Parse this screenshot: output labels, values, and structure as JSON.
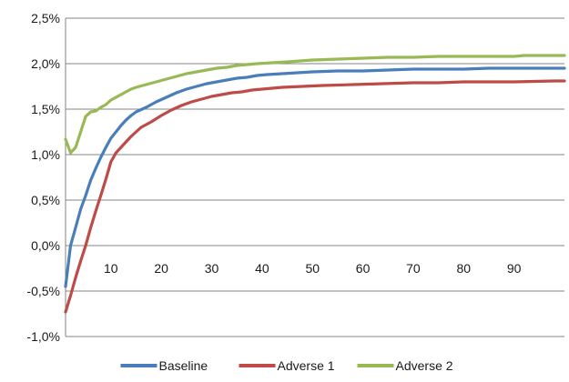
{
  "chart_data": {
    "type": "line",
    "ylim": [
      -1.0,
      2.5
    ],
    "y_ticks": [
      {
        "value": 2.5,
        "label": "2,5%"
      },
      {
        "value": 2.0,
        "label": "2,0%"
      },
      {
        "value": 1.5,
        "label": "1,5%"
      },
      {
        "value": 1.0,
        "label": "1,0%"
      },
      {
        "value": 0.5,
        "label": "0,5%"
      },
      {
        "value": 0.0,
        "label": "0,0%"
      },
      {
        "value": -0.5,
        "label": "-0,5%"
      },
      {
        "value": -1.0,
        "label": "-1,0%"
      }
    ],
    "xlim": [
      1,
      100
    ],
    "x_ticks": [
      10,
      20,
      30,
      40,
      50,
      60,
      70,
      80,
      90
    ],
    "grid": "horizontal",
    "legend_position": "bottom",
    "series": [
      {
        "name": "Baseline",
        "color": "#4a7ebb",
        "points": [
          [
            1,
            -0.45
          ],
          [
            2,
            0.0
          ],
          [
            3,
            0.2
          ],
          [
            4,
            0.4
          ],
          [
            5,
            0.55
          ],
          [
            6,
            0.72
          ],
          [
            7,
            0.85
          ],
          [
            8,
            0.97
          ],
          [
            9,
            1.08
          ],
          [
            10,
            1.18
          ],
          [
            11,
            1.25
          ],
          [
            12,
            1.32
          ],
          [
            13,
            1.38
          ],
          [
            14,
            1.43
          ],
          [
            15,
            1.47
          ],
          [
            17,
            1.52
          ],
          [
            19,
            1.58
          ],
          [
            21,
            1.63
          ],
          [
            23,
            1.68
          ],
          [
            25,
            1.72
          ],
          [
            27,
            1.75
          ],
          [
            29,
            1.78
          ],
          [
            31,
            1.8
          ],
          [
            33,
            1.82
          ],
          [
            35,
            1.84
          ],
          [
            37,
            1.85
          ],
          [
            39,
            1.87
          ],
          [
            41,
            1.88
          ],
          [
            44,
            1.89
          ],
          [
            47,
            1.9
          ],
          [
            50,
            1.91
          ],
          [
            55,
            1.92
          ],
          [
            60,
            1.92
          ],
          [
            65,
            1.93
          ],
          [
            70,
            1.94
          ],
          [
            80,
            1.94
          ],
          [
            85,
            1.95
          ],
          [
            90,
            1.95
          ],
          [
            100,
            1.95
          ]
        ]
      },
      {
        "name": "Adverse 1",
        "color": "#be4b48",
        "points": [
          [
            1,
            -0.73
          ],
          [
            2,
            -0.55
          ],
          [
            3,
            -0.35
          ],
          [
            4,
            -0.17
          ],
          [
            5,
            0.0
          ],
          [
            6,
            0.2
          ],
          [
            7,
            0.38
          ],
          [
            8,
            0.55
          ],
          [
            9,
            0.73
          ],
          [
            10,
            0.92
          ],
          [
            11,
            1.02
          ],
          [
            12,
            1.08
          ],
          [
            13,
            1.14
          ],
          [
            14,
            1.2
          ],
          [
            15,
            1.25
          ],
          [
            16,
            1.3
          ],
          [
            18,
            1.36
          ],
          [
            20,
            1.43
          ],
          [
            22,
            1.49
          ],
          [
            24,
            1.54
          ],
          [
            26,
            1.58
          ],
          [
            28,
            1.61
          ],
          [
            30,
            1.64
          ],
          [
            32,
            1.66
          ],
          [
            34,
            1.68
          ],
          [
            36,
            1.69
          ],
          [
            38,
            1.71
          ],
          [
            40,
            1.72
          ],
          [
            44,
            1.74
          ],
          [
            48,
            1.75
          ],
          [
            52,
            1.76
          ],
          [
            58,
            1.77
          ],
          [
            64,
            1.78
          ],
          [
            70,
            1.79
          ],
          [
            75,
            1.79
          ],
          [
            80,
            1.8
          ],
          [
            90,
            1.8
          ],
          [
            98,
            1.81
          ],
          [
            100,
            1.81
          ]
        ]
      },
      {
        "name": "Adverse 2",
        "color": "#98b954",
        "points": [
          [
            1,
            1.17
          ],
          [
            2,
            1.02
          ],
          [
            3,
            1.08
          ],
          [
            4,
            1.25
          ],
          [
            5,
            1.42
          ],
          [
            6,
            1.47
          ],
          [
            7,
            1.48
          ],
          [
            8,
            1.52
          ],
          [
            9,
            1.55
          ],
          [
            10,
            1.6
          ],
          [
            11,
            1.63
          ],
          [
            12,
            1.66
          ],
          [
            13,
            1.69
          ],
          [
            14,
            1.72
          ],
          [
            15,
            1.74
          ],
          [
            17,
            1.77
          ],
          [
            19,
            1.8
          ],
          [
            21,
            1.83
          ],
          [
            23,
            1.86
          ],
          [
            25,
            1.89
          ],
          [
            27,
            1.91
          ],
          [
            29,
            1.93
          ],
          [
            31,
            1.95
          ],
          [
            33,
            1.96
          ],
          [
            35,
            1.98
          ],
          [
            37,
            1.99
          ],
          [
            39,
            2.0
          ],
          [
            42,
            2.01
          ],
          [
            45,
            2.02
          ],
          [
            50,
            2.04
          ],
          [
            55,
            2.05
          ],
          [
            60,
            2.06
          ],
          [
            65,
            2.07
          ],
          [
            70,
            2.07
          ],
          [
            75,
            2.08
          ],
          [
            80,
            2.08
          ],
          [
            90,
            2.08
          ],
          [
            92,
            2.09
          ],
          [
            100,
            2.09
          ]
        ]
      }
    ]
  }
}
